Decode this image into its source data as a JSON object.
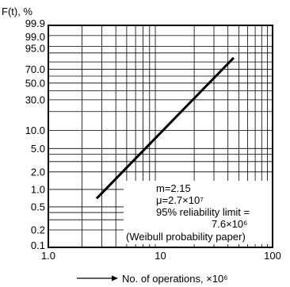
{
  "chart_data": {
    "type": "line",
    "ylabel": "F(t), %",
    "xlabel": "No. of operations, ×10⁶",
    "xscale": "log",
    "yscale": "weibull",
    "xlim": [
      1,
      100
    ],
    "ylim": [
      0.1,
      99.9
    ],
    "x_ticks": [
      "1.0",
      "10",
      "100"
    ],
    "y_ticks": [
      "99.9",
      "99.0",
      "95.0",
      "70.0",
      "50.0",
      "30.0",
      "10.0",
      "5.0",
      "2.0",
      "1.0",
      "0.5",
      "0.2",
      "0.1"
    ],
    "y_tick_values": [
      99.9,
      99.0,
      95.0,
      70.0,
      50.0,
      30.0,
      10.0,
      5.0,
      2.0,
      1.0,
      0.5,
      0.2,
      0.1
    ],
    "grid": true,
    "series": [
      {
        "x": [
          2.7,
          45
        ],
        "y": [
          0.7,
          85
        ]
      }
    ],
    "annotations": [
      "m=2.15",
      "μ=2.7×10⁷",
      "95% reliability limit =",
      "7.6×10⁶",
      "(Weibull probability paper)"
    ]
  }
}
